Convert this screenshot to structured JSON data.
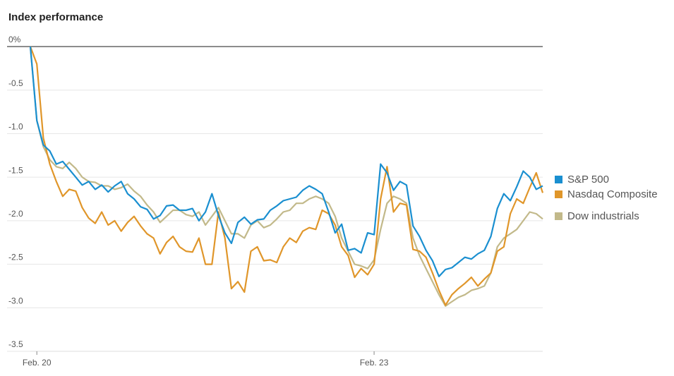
{
  "chart_data": {
    "type": "line",
    "title": "Index performance",
    "categories": [
      null,
      "Feb. 20",
      null,
      null,
      null,
      null,
      null,
      null,
      null,
      null,
      null,
      null,
      null,
      null,
      null,
      null,
      null,
      null,
      null,
      null,
      null,
      null,
      null,
      null,
      null,
      null,
      null,
      null,
      null,
      null,
      null,
      null,
      null,
      null,
      null,
      null,
      null,
      null,
      null,
      null,
      null,
      null,
      null,
      null,
      null,
      null,
      null,
      null,
      null,
      null,
      null,
      null,
      null,
      "Feb. 23",
      null,
      null,
      null,
      null,
      null,
      null,
      null,
      null,
      null,
      null,
      null,
      null,
      null,
      null,
      null,
      null,
      null,
      null,
      null,
      null,
      null,
      null,
      null,
      null,
      null,
      null
    ],
    "series": [
      {
        "name": "S&P 500",
        "color": "#1a8fd0",
        "values": [
          0,
          -0.85,
          -1.13,
          -1.2,
          -1.35,
          -1.32,
          -1.41,
          -1.5,
          -1.59,
          -1.55,
          -1.64,
          -1.59,
          -1.67,
          -1.6,
          -1.55,
          -1.69,
          -1.75,
          -1.84,
          -1.87,
          -1.98,
          -1.94,
          -1.83,
          -1.82,
          -1.88,
          -1.88,
          -1.86,
          -2.0,
          -1.9,
          -1.69,
          -1.94,
          -2.14,
          -2.26,
          -2.02,
          -1.96,
          -2.04,
          -1.99,
          -1.98,
          -1.88,
          -1.83,
          -1.77,
          -1.75,
          -1.73,
          -1.65,
          -1.6,
          -1.64,
          -1.69,
          -1.9,
          -2.14,
          -2.04,
          -2.34,
          -2.32,
          -2.37,
          -2.14,
          -2.16,
          -1.35,
          -1.45,
          -1.65,
          -1.55,
          -1.59,
          -2.06,
          -2.18,
          -2.34,
          -2.46,
          -2.64,
          -2.56,
          -2.54,
          -2.48,
          -2.42,
          -2.44,
          -2.38,
          -2.34,
          -2.18,
          -1.86,
          -1.69,
          -1.77,
          -1.61,
          -1.43,
          -1.5,
          -1.64,
          -1.6
        ]
      },
      {
        "name": "Nasdaq Composite",
        "color": "#e0962a",
        "values": [
          0,
          -0.2,
          -1.05,
          -1.35,
          -1.55,
          -1.72,
          -1.64,
          -1.66,
          -1.85,
          -1.97,
          -2.03,
          -1.9,
          -2.05,
          -2.0,
          -2.12,
          -2.02,
          -1.95,
          -2.06,
          -2.15,
          -2.2,
          -2.38,
          -2.25,
          -2.18,
          -2.3,
          -2.35,
          -2.36,
          -2.2,
          -2.5,
          -2.5,
          -1.9,
          -2.2,
          -2.78,
          -2.7,
          -2.82,
          -2.35,
          -2.3,
          -2.46,
          -2.45,
          -2.48,
          -2.3,
          -2.2,
          -2.25,
          -2.12,
          -2.08,
          -2.1,
          -1.88,
          -1.92,
          -2.05,
          -2.3,
          -2.4,
          -2.65,
          -2.55,
          -2.62,
          -2.5,
          -1.75,
          -1.38,
          -1.9,
          -1.8,
          -1.82,
          -2.33,
          -2.35,
          -2.42,
          -2.6,
          -2.8,
          -2.97,
          -2.85,
          -2.78,
          -2.72,
          -2.65,
          -2.75,
          -2.67,
          -2.6,
          -2.35,
          -2.3,
          -1.92,
          -1.75,
          -1.8,
          -1.62,
          -1.45,
          -1.68
        ]
      },
      {
        "name": "Dow industrials",
        "color": "#c2b98a",
        "values": [
          0,
          -0.85,
          -1.15,
          -1.3,
          -1.38,
          -1.4,
          -1.33,
          -1.4,
          -1.5,
          -1.55,
          -1.56,
          -1.6,
          -1.6,
          -1.64,
          -1.62,
          -1.58,
          -1.66,
          -1.72,
          -1.82,
          -1.9,
          -2.02,
          -1.95,
          -1.88,
          -1.88,
          -1.93,
          -1.95,
          -1.9,
          -2.05,
          -1.95,
          -1.85,
          -2.0,
          -2.15,
          -2.15,
          -2.2,
          -2.05,
          -2.0,
          -2.08,
          -2.05,
          -1.98,
          -1.9,
          -1.88,
          -1.8,
          -1.8,
          -1.75,
          -1.72,
          -1.75,
          -1.8,
          -1.95,
          -2.2,
          -2.35,
          -2.5,
          -2.52,
          -2.55,
          -2.45,
          -2.1,
          -1.8,
          -1.72,
          -1.75,
          -1.8,
          -2.2,
          -2.4,
          -2.55,
          -2.7,
          -2.85,
          -2.98,
          -2.93,
          -2.88,
          -2.85,
          -2.8,
          -2.78,
          -2.75,
          -2.6,
          -2.3,
          -2.2,
          -2.15,
          -2.1,
          -2.0,
          -1.9,
          -1.92,
          -1.98
        ]
      }
    ],
    "ylim": [
      -3.5,
      0
    ],
    "yticks": [
      {
        "value": 0,
        "label": "0%"
      },
      -0.5,
      {
        "value": -1,
        "label": "-1.0"
      },
      -1.5,
      {
        "value": -2,
        "label": "-2.0"
      },
      -2.5,
      {
        "value": -3,
        "label": "-3.0"
      },
      -3.5
    ],
    "grid": true
  }
}
